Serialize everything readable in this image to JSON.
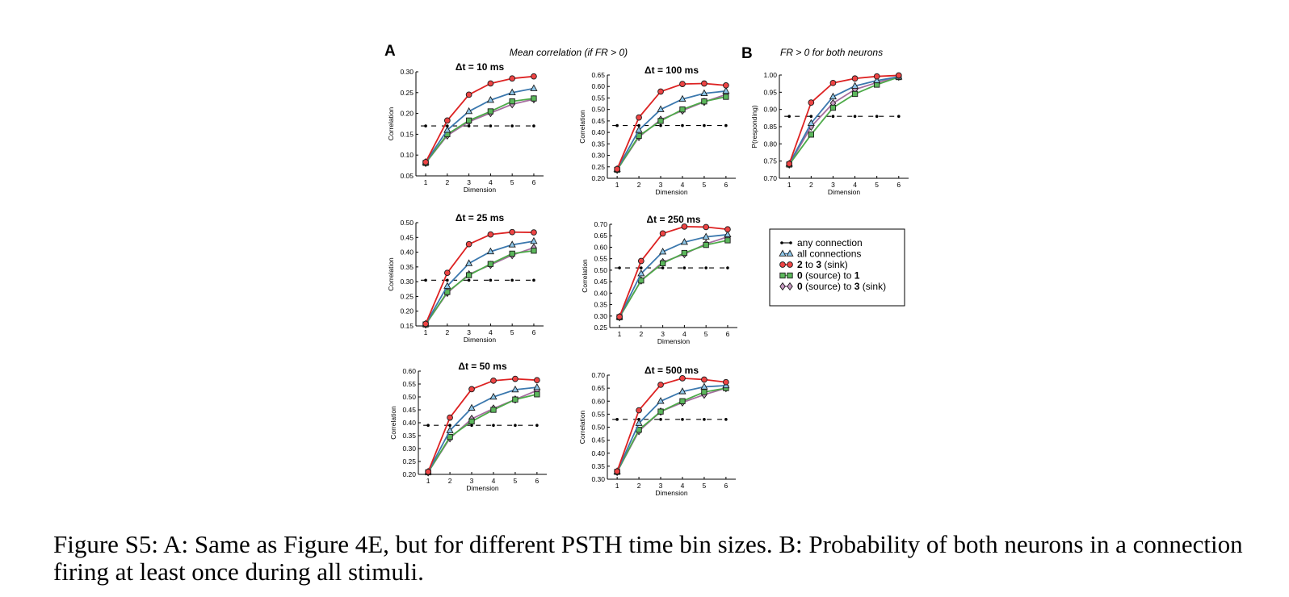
{
  "panel_labels": {
    "a": "A",
    "b": "B"
  },
  "headers": {
    "a": "Mean correlation (if FR > 0)",
    "b": "FR > 0 for both neurons"
  },
  "caption": "Figure S5: A: Same as Figure 4E, but for different PSTH time bin sizes. B: Probability of both neurons in a connection firing at least once during all stimuli.",
  "legend": [
    {
      "key": "any",
      "label_parts": [
        [
          "any connection",
          false
        ]
      ]
    },
    {
      "key": "all",
      "label_parts": [
        [
          "all connections",
          false
        ]
      ]
    },
    {
      "key": "r23",
      "label_parts": [
        [
          "2",
          true
        ],
        [
          " to ",
          false
        ],
        [
          "3",
          true
        ],
        [
          " (sink)",
          false
        ]
      ]
    },
    {
      "key": "r01",
      "label_parts": [
        [
          "0",
          true
        ],
        [
          " (source) to ",
          false
        ],
        [
          "1",
          true
        ]
      ]
    },
    {
      "key": "r03",
      "label_parts": [
        [
          "0",
          true
        ],
        [
          " (source) to ",
          false
        ],
        [
          "3",
          true
        ],
        [
          " (sink)",
          false
        ]
      ]
    }
  ],
  "series_styles": {
    "any": {
      "color": "#000000",
      "marker": "dot",
      "dash": true
    },
    "all": {
      "color": "#3b78ae",
      "fill": "#8ec6e8",
      "marker": "triangle"
    },
    "r23": {
      "color": "#dd2222",
      "fill": "#ee4444",
      "marker": "circle"
    },
    "r01": {
      "color": "#4caa48",
      "fill": "#5cb85c",
      "marker": "square"
    },
    "r03": {
      "color": "#a56d9f",
      "fill": "#c59ac0",
      "marker": "diamond"
    }
  },
  "chart_data": [
    {
      "type": "line",
      "title": "Δt = 10 ms",
      "xlabel": "Dimension",
      "ylabel": "Correlation",
      "x": [
        1,
        2,
        3,
        4,
        5,
        6
      ],
      "ylim": [
        0.05,
        0.3
      ],
      "yticks": [
        "0.05",
        "0.10",
        "0.15",
        "0.20",
        "0.25",
        "0.30"
      ],
      "series": {
        "any": [
          0.17,
          0.17,
          0.17,
          0.17,
          0.17,
          0.17
        ],
        "all": [
          0.083,
          0.16,
          0.205,
          0.232,
          0.25,
          0.26
        ],
        "r23": [
          0.083,
          0.183,
          0.245,
          0.272,
          0.284,
          0.289
        ],
        "r01": [
          0.081,
          0.15,
          0.183,
          0.205,
          0.229,
          0.236
        ],
        "r03": [
          0.081,
          0.147,
          0.18,
          0.201,
          0.222,
          0.234
        ]
      }
    },
    {
      "type": "line",
      "title": "Δt = 100 ms",
      "xlabel": "Dimension",
      "ylabel": "Correlation",
      "x": [
        1,
        2,
        3,
        4,
        5,
        6
      ],
      "ylim": [
        0.2,
        0.65
      ],
      "yticks": [
        "0.20",
        "0.25",
        "0.30",
        "0.35",
        "0.40",
        "0.45",
        "0.50",
        "0.55",
        "0.60",
        "0.65"
      ],
      "series": {
        "any": [
          0.43,
          0.43,
          0.43,
          0.43,
          0.43,
          0.43
        ],
        "all": [
          0.24,
          0.41,
          0.5,
          0.545,
          0.57,
          0.58
        ],
        "r23": [
          0.24,
          0.465,
          0.578,
          0.611,
          0.613,
          0.605
        ],
        "r01": [
          0.237,
          0.385,
          0.45,
          0.5,
          0.535,
          0.555
        ],
        "r03": [
          0.237,
          0.38,
          0.455,
          0.495,
          0.533,
          0.565
        ]
      }
    },
    {
      "type": "line",
      "title": "FR > 0 for both neurons",
      "xlabel": "Dimension",
      "ylabel": "P(responding)",
      "x": [
        1,
        2,
        3,
        4,
        5,
        6
      ],
      "ylim": [
        0.7,
        1.0
      ],
      "yticks": [
        "0.70",
        "0.75",
        "0.80",
        "0.85",
        "0.90",
        "0.95",
        "1.00"
      ],
      "series": {
        "any": [
          0.88,
          0.88,
          0.88,
          0.88,
          0.88,
          0.88
        ],
        "all": [
          0.742,
          0.86,
          0.937,
          0.968,
          0.984,
          0.995
        ],
        "r23": [
          0.742,
          0.92,
          0.977,
          0.99,
          0.996,
          0.999
        ],
        "r01": [
          0.74,
          0.827,
          0.905,
          0.945,
          0.972,
          0.994
        ],
        "r03": [
          0.74,
          0.85,
          0.918,
          0.958,
          0.978,
          0.995
        ]
      }
    },
    {
      "type": "line",
      "title": "Δt = 25 ms",
      "xlabel": "Dimension",
      "ylabel": "Correlation",
      "x": [
        1,
        2,
        3,
        4,
        5,
        6
      ],
      "ylim": [
        0.15,
        0.5
      ],
      "yticks": [
        "0.15",
        "0.20",
        "0.25",
        "0.30",
        "0.35",
        "0.40",
        "0.45",
        "0.50"
      ],
      "series": {
        "any": [
          0.305,
          0.305,
          0.305,
          0.305,
          0.305,
          0.305
        ],
        "all": [
          0.157,
          0.285,
          0.362,
          0.402,
          0.425,
          0.437
        ],
        "r23": [
          0.157,
          0.33,
          0.427,
          0.46,
          0.468,
          0.467
        ],
        "r01": [
          0.155,
          0.265,
          0.322,
          0.36,
          0.395,
          0.405
        ],
        "r03": [
          0.155,
          0.262,
          0.325,
          0.357,
          0.39,
          0.415
        ]
      }
    },
    {
      "type": "line",
      "title": "Δt = 250 ms",
      "xlabel": "Dimension",
      "ylabel": "Correlation",
      "x": [
        1,
        2,
        3,
        4,
        5,
        6
      ],
      "ylim": [
        0.25,
        0.7
      ],
      "yticks": [
        "0.25",
        "0.30",
        "0.35",
        "0.40",
        "0.45",
        "0.50",
        "0.55",
        "0.60",
        "0.65",
        "0.70"
      ],
      "series": {
        "any": [
          0.51,
          0.51,
          0.51,
          0.51,
          0.51,
          0.51
        ],
        "all": [
          0.297,
          0.485,
          0.58,
          0.622,
          0.645,
          0.655
        ],
        "r23": [
          0.297,
          0.54,
          0.66,
          0.69,
          0.688,
          0.678
        ],
        "r01": [
          0.295,
          0.455,
          0.53,
          0.575,
          0.61,
          0.63
        ],
        "r03": [
          0.295,
          0.455,
          0.535,
          0.57,
          0.615,
          0.645
        ]
      }
    },
    {
      "type": "line",
      "title": "Δt = 50 ms",
      "xlabel": "Dimension",
      "ylabel": "Correlation",
      "x": [
        1,
        2,
        3,
        4,
        5,
        6
      ],
      "ylim": [
        0.2,
        0.6
      ],
      "yticks": [
        "0.20",
        "0.25",
        "0.30",
        "0.35",
        "0.40",
        "0.45",
        "0.50",
        "0.55",
        "0.60"
      ],
      "series": {
        "any": [
          0.39,
          0.39,
          0.39,
          0.39,
          0.39,
          0.39
        ],
        "all": [
          0.21,
          0.37,
          0.457,
          0.5,
          0.528,
          0.537
        ],
        "r23": [
          0.21,
          0.42,
          0.53,
          0.563,
          0.57,
          0.565
        ],
        "r01": [
          0.208,
          0.345,
          0.405,
          0.45,
          0.49,
          0.51
        ],
        "r03": [
          0.208,
          0.34,
          0.415,
          0.455,
          0.49,
          0.525
        ]
      }
    },
    {
      "type": "line",
      "title": "Δt = 500 ms",
      "xlabel": "Dimension",
      "ylabel": "Correlation",
      "x": [
        1,
        2,
        3,
        4,
        5,
        6
      ],
      "ylim": [
        0.3,
        0.7
      ],
      "yticks": [
        "0.30",
        "0.35",
        "0.40",
        "0.45",
        "0.50",
        "0.55",
        "0.60",
        "0.65",
        "0.70"
      ],
      "series": {
        "any": [
          0.53,
          0.53,
          0.53,
          0.53,
          0.53,
          0.53
        ],
        "all": [
          0.33,
          0.515,
          0.6,
          0.637,
          0.655,
          0.66
        ],
        "r23": [
          0.33,
          0.565,
          0.663,
          0.688,
          0.683,
          0.673
        ],
        "r01": [
          0.328,
          0.49,
          0.56,
          0.6,
          0.635,
          0.65
        ],
        "r03": [
          0.328,
          0.485,
          0.56,
          0.595,
          0.625,
          0.65
        ]
      }
    }
  ]
}
